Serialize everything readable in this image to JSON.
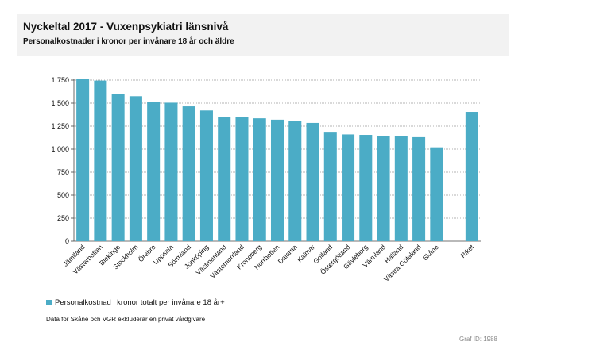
{
  "header": {
    "title": "Nyckeltal 2017 - Vuxenpsykiatri länsnivå",
    "subtitle": "Personalkostnader i kronor per invånare 18 år och äldre"
  },
  "chart_data": {
    "type": "bar",
    "title": "Nyckeltal 2017 - Vuxenpsykiatri länsnivå",
    "subtitle": "Personalkostnader i kronor per invånare 18 år och äldre",
    "categories": [
      "Jämtland",
      "Västerbotten",
      "Blekinge",
      "Stockholm",
      "Örebro",
      "Uppsala",
      "Sörmland",
      "Jönköping",
      "Västmanland",
      "Västernorrland",
      "Kronoberg",
      "Norrbotten",
      "Dalarna",
      "Kalmar",
      "Gotland",
      "Östergötland",
      "Gävleborg",
      "Värmland",
      "Halland",
      "Västra Götaland",
      "Skåne",
      "",
      "Riket"
    ],
    "series": [
      {
        "name": "Personalkostnad i kronor totalt per invånare 18 år+",
        "values": [
          1760,
          1745,
          1600,
          1575,
          1515,
          1505,
          1465,
          1420,
          1350,
          1345,
          1335,
          1320,
          1310,
          1285,
          1180,
          1160,
          1155,
          1145,
          1140,
          1130,
          1020,
          null,
          1405
        ]
      }
    ],
    "ylim": [
      0,
      1750
    ],
    "yticks": [
      0,
      250,
      500,
      750,
      1000,
      1250,
      1500,
      1750
    ],
    "ytick_labels": [
      "0",
      "250",
      "500",
      "750",
      "1 000",
      "1 250",
      "1 500",
      "1 750"
    ],
    "grid": true,
    "legend_position": "bottom-left",
    "bar_color": "#4bacc6"
  },
  "legend": {
    "label": "Personalkostnad i kronor totalt per invånare 18 år+"
  },
  "footnote": "Data för Skåne och VGR exkluderar en privat vårdgivare",
  "graf_id": "Graf ID: 1988"
}
